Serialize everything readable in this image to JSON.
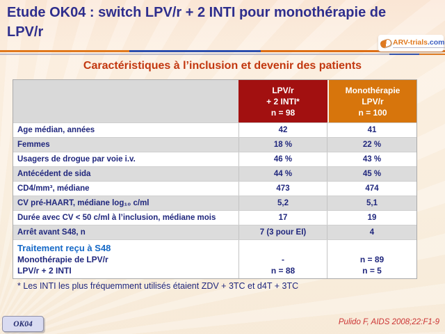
{
  "title": "Etude OK04 : switch LPV/r + 2 INTI pour monothérapie de LPV/r",
  "logo": {
    "name": "ARV-trials",
    "dot": ".",
    "tld": "com"
  },
  "subtitle": "Caractéristiques à l’inclusion et devenir des patients",
  "table": {
    "col_headers": {
      "arm1": {
        "lines": [
          "LPV/r",
          "+ 2 INTI*",
          "n = 98"
        ]
      },
      "arm2": {
        "lines": [
          "Monothérapie",
          "LPV/r",
          "n = 100"
        ]
      }
    },
    "rows": [
      {
        "label": "Age médian, années",
        "v1": "42",
        "v2": "41"
      },
      {
        "label": "Femmes",
        "v1": "18 %",
        "v2": "22 %"
      },
      {
        "label": "Usagers de drogue par voie i.v.",
        "v1": "46 %",
        "v2": "43 %"
      },
      {
        "label": "Antécédent de sida",
        "v1": "44 %",
        "v2": "45 %"
      },
      {
        "label": "CD4/mm³, médiane",
        "v1": "473",
        "v2": "474"
      },
      {
        "label": "CV pré-HAART, médiane log₁₀ c/ml",
        "v1": "5,2",
        "v2": "5,1"
      },
      {
        "label": "Durée avec CV < 50 c/ml à l’inclusion, médiane mois",
        "v1": "17",
        "v2": "19"
      },
      {
        "label": "Arrêt avant S48, n",
        "v1": "7 (3 pour EI)",
        "v2": "4"
      }
    ],
    "footer_block": [
      {
        "label": "Traitement reçu à S48",
        "v1": "",
        "v2": ""
      },
      {
        "label": "Monothérapie de LPV/r",
        "v1": "-",
        "v2": "n = 89"
      },
      {
        "label": "LPV/r + 2 INTI",
        "v1": "n = 88",
        "v2": "n = 5"
      }
    ]
  },
  "footnote": "* Les INTI les plus fréquemment utilisés étaient ZDV + 3TC et d4T + 3TC",
  "badge": "OK04",
  "citation": "Pulido F, AIDS 2008;22:F1-9",
  "colors": {
    "title_navy": "#2e2e8d",
    "subtitle_red": "#c2370f",
    "header_red": "#a21010",
    "header_orange": "#d7750c",
    "header_gray": "#d9d9d9",
    "row_alt": "#dcdcdc",
    "cell_navy": "#20277d",
    "highlight_blue": "#1569c7",
    "citation_red": "#cb3333",
    "badge_bg": "#d9dbf1",
    "logo_orange": "#e0791e",
    "logo_blue": "#3b5dc0"
  }
}
